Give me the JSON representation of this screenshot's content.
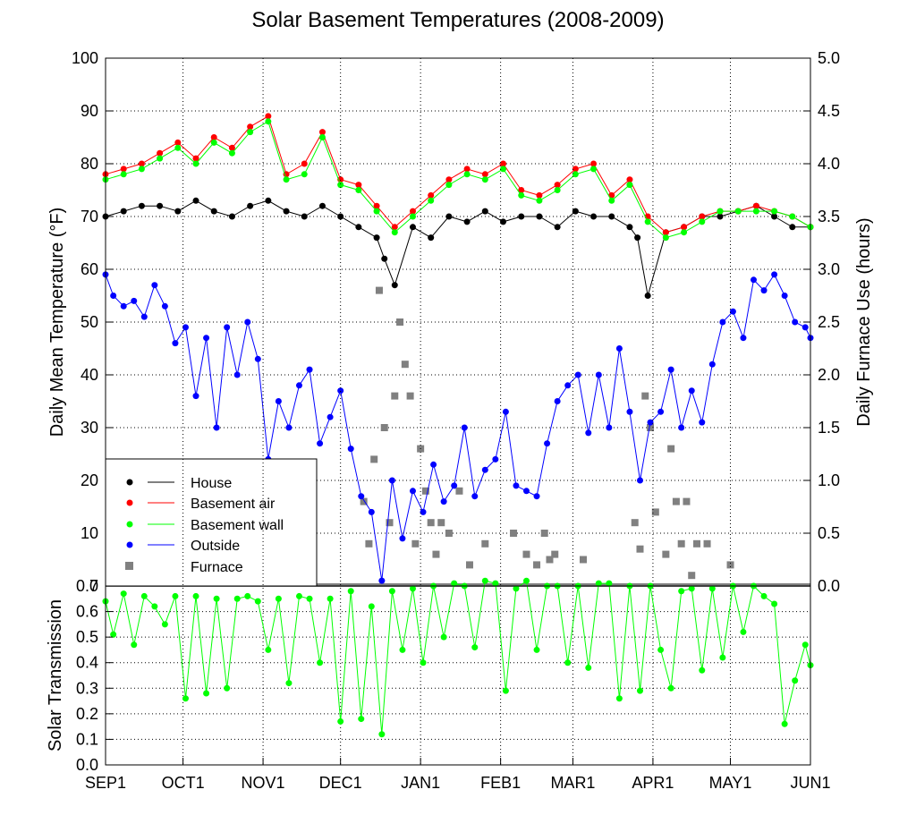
{
  "chart_data": [
    {
      "type": "line",
      "title": "Solar Basement Temperatures (2008-2009)",
      "xlabel": "",
      "ylabel": "Daily Mean Temperature (°F)",
      "ylabel_right": "Daily Furnace Use (hours)",
      "xlim": [
        "2008-09-01",
        "2009-06-01"
      ],
      "ylim": [
        0,
        100
      ],
      "ylim_right": [
        0,
        5
      ],
      "yticks": [
        "0",
        "10",
        "20",
        "30",
        "40",
        "50",
        "60",
        "70",
        "80",
        "90",
        "100"
      ],
      "yticks_right": [
        "0.0",
        "0.5",
        "1.0",
        "1.5",
        "2.0",
        "2.5",
        "3.0",
        "3.5",
        "4.0",
        "4.5",
        "5.0"
      ],
      "grid": true,
      "legend_position": "bottom-left",
      "colors": {
        "house": "#000000",
        "basement_air": "#ff0000",
        "basement_wall": "#00ff00",
        "outside": "#0000ff",
        "furnace": "#808080"
      },
      "series": [
        {
          "key": "house",
          "name": "House",
          "axis": "left",
          "style": "line+points",
          "x": [
            "2008-09-01",
            "2008-09-08",
            "2008-09-15",
            "2008-09-22",
            "2008-09-29",
            "2008-10-06",
            "2008-10-13",
            "2008-10-20",
            "2008-10-27",
            "2008-11-03",
            "2008-11-10",
            "2008-11-17",
            "2008-11-24",
            "2008-12-01",
            "2008-12-08",
            "2008-12-15",
            "2008-12-18",
            "2008-12-22",
            "2008-12-29",
            "2009-01-05",
            "2009-01-12",
            "2009-01-19",
            "2009-01-26",
            "2009-02-02",
            "2009-02-09",
            "2009-02-16",
            "2009-02-23",
            "2009-03-02",
            "2009-03-09",
            "2009-03-16",
            "2009-03-23",
            "2009-03-26",
            "2009-03-30",
            "2009-04-06",
            "2009-04-13",
            "2009-04-20",
            "2009-04-27",
            "2009-05-04",
            "2009-05-11",
            "2009-05-18",
            "2009-05-25",
            "2009-06-01"
          ],
          "y": [
            70,
            71,
            72,
            72,
            71,
            73,
            71,
            70,
            72,
            73,
            71,
            70,
            72,
            70,
            68,
            66,
            62,
            57,
            68,
            66,
            70,
            69,
            71,
            69,
            70,
            70,
            68,
            71,
            70,
            70,
            68,
            66,
            55,
            67,
            68,
            70,
            70,
            71,
            72,
            70,
            68,
            68
          ]
        },
        {
          "key": "basement_air",
          "name": "Basement air",
          "axis": "left",
          "style": "line+points",
          "x": [
            "2008-09-01",
            "2008-09-08",
            "2008-09-15",
            "2008-09-22",
            "2008-09-29",
            "2008-10-06",
            "2008-10-13",
            "2008-10-20",
            "2008-10-27",
            "2008-11-03",
            "2008-11-10",
            "2008-11-17",
            "2008-11-24",
            "2008-12-01",
            "2008-12-08",
            "2008-12-15",
            "2008-12-22",
            "2008-12-29",
            "2009-01-05",
            "2009-01-12",
            "2009-01-19",
            "2009-01-26",
            "2009-02-02",
            "2009-02-09",
            "2009-02-16",
            "2009-02-23",
            "2009-03-02",
            "2009-03-09",
            "2009-03-16",
            "2009-03-23",
            "2009-03-30",
            "2009-04-06",
            "2009-04-13",
            "2009-04-20",
            "2009-04-27",
            "2009-05-04",
            "2009-05-11",
            "2009-05-18",
            "2009-05-25",
            "2009-06-01"
          ],
          "y": [
            78,
            79,
            80,
            82,
            84,
            81,
            85,
            83,
            87,
            89,
            78,
            80,
            86,
            77,
            76,
            72,
            68,
            71,
            74,
            77,
            79,
            78,
            80,
            75,
            74,
            76,
            79,
            80,
            74,
            77,
            70,
            67,
            68,
            70,
            71,
            71,
            72,
            71,
            70,
            68
          ]
        },
        {
          "key": "basement_wall",
          "name": "Basement wall",
          "axis": "left",
          "style": "line+points",
          "x": [
            "2008-09-01",
            "2008-09-08",
            "2008-09-15",
            "2008-09-22",
            "2008-09-29",
            "2008-10-06",
            "2008-10-13",
            "2008-10-20",
            "2008-10-27",
            "2008-11-03",
            "2008-11-10",
            "2008-11-17",
            "2008-11-24",
            "2008-12-01",
            "2008-12-08",
            "2008-12-15",
            "2008-12-22",
            "2008-12-29",
            "2009-01-05",
            "2009-01-12",
            "2009-01-19",
            "2009-01-26",
            "2009-02-02",
            "2009-02-09",
            "2009-02-16",
            "2009-02-23",
            "2009-03-02",
            "2009-03-09",
            "2009-03-16",
            "2009-03-23",
            "2009-03-30",
            "2009-04-06",
            "2009-04-13",
            "2009-04-20",
            "2009-04-27",
            "2009-05-04",
            "2009-05-11",
            "2009-05-18",
            "2009-05-25",
            "2009-06-01"
          ],
          "y": [
            77,
            78,
            79,
            81,
            83,
            80,
            84,
            82,
            86,
            88,
            77,
            78,
            85,
            76,
            75,
            71,
            67,
            70,
            73,
            76,
            78,
            77,
            79,
            74,
            73,
            75,
            78,
            79,
            73,
            76,
            69,
            66,
            67,
            69,
            71,
            71,
            71,
            71,
            70,
            68
          ]
        },
        {
          "key": "outside",
          "name": "Outside",
          "axis": "left",
          "style": "line+points",
          "x": [
            "2008-09-01",
            "2008-09-04",
            "2008-09-08",
            "2008-09-12",
            "2008-09-16",
            "2008-09-20",
            "2008-09-24",
            "2008-09-28",
            "2008-10-02",
            "2008-10-06",
            "2008-10-10",
            "2008-10-14",
            "2008-10-18",
            "2008-10-22",
            "2008-10-26",
            "2008-10-30",
            "2008-11-03",
            "2008-11-07",
            "2008-11-11",
            "2008-11-15",
            "2008-11-19",
            "2008-11-23",
            "2008-11-27",
            "2008-12-01",
            "2008-12-05",
            "2008-12-09",
            "2008-12-13",
            "2008-12-17",
            "2008-12-21",
            "2008-12-25",
            "2008-12-29",
            "2009-01-02",
            "2009-01-06",
            "2009-01-10",
            "2009-01-14",
            "2009-01-18",
            "2009-01-22",
            "2009-01-26",
            "2009-01-30",
            "2009-02-03",
            "2009-02-07",
            "2009-02-11",
            "2009-02-15",
            "2009-02-19",
            "2009-02-23",
            "2009-02-27",
            "2009-03-03",
            "2009-03-07",
            "2009-03-11",
            "2009-03-15",
            "2009-03-19",
            "2009-03-23",
            "2009-03-27",
            "2009-03-31",
            "2009-04-04",
            "2009-04-08",
            "2009-04-12",
            "2009-04-16",
            "2009-04-20",
            "2009-04-24",
            "2009-04-28",
            "2009-05-02",
            "2009-05-06",
            "2009-05-10",
            "2009-05-14",
            "2009-05-18",
            "2009-05-22",
            "2009-05-26",
            "2009-05-30",
            "2009-06-01"
          ],
          "y": [
            59,
            55,
            53,
            54,
            51,
            57,
            53,
            46,
            49,
            36,
            47,
            30,
            49,
            40,
            50,
            43,
            24,
            35,
            30,
            38,
            41,
            27,
            32,
            37,
            26,
            17,
            14,
            1,
            20,
            9,
            18,
            14,
            23,
            16,
            19,
            30,
            17,
            22,
            24,
            33,
            19,
            18,
            17,
            27,
            35,
            38,
            40,
            29,
            40,
            30,
            45,
            33,
            20,
            31,
            33,
            41,
            30,
            37,
            31,
            42,
            50,
            52,
            47,
            58,
            56,
            59,
            55,
            50,
            49,
            47
          ]
        },
        {
          "key": "furnace",
          "name": "Furnace",
          "axis": "right",
          "style": "points",
          "x": [
            "2008-12-10",
            "2008-12-12",
            "2008-12-14",
            "2008-12-16",
            "2008-12-18",
            "2008-12-20",
            "2008-12-22",
            "2008-12-24",
            "2008-12-26",
            "2008-12-28",
            "2008-12-30",
            "2009-01-01",
            "2009-01-03",
            "2009-01-05",
            "2009-01-07",
            "2009-01-09",
            "2009-01-12",
            "2009-01-16",
            "2009-01-20",
            "2009-01-26",
            "2009-02-06",
            "2009-02-11",
            "2009-02-15",
            "2009-02-18",
            "2009-02-20",
            "2009-02-22",
            "2009-03-05",
            "2009-03-25",
            "2009-03-27",
            "2009-03-29",
            "2009-03-31",
            "2009-04-02",
            "2009-04-06",
            "2009-04-08",
            "2009-04-10",
            "2009-04-12",
            "2009-04-14",
            "2009-04-16",
            "2009-04-18",
            "2009-04-22",
            "2009-05-01"
          ],
          "y": [
            0.8,
            0.4,
            1.2,
            2.8,
            1.5,
            0.6,
            1.8,
            2.5,
            2.1,
            1.8,
            0.4,
            1.3,
            0.9,
            0.6,
            0.3,
            0.6,
            0.5,
            0.9,
            0.2,
            0.4,
            0.5,
            0.3,
            0.2,
            0.5,
            0.25,
            0.3,
            0.25,
            0.6,
            0.35,
            1.8,
            1.5,
            0.7,
            0.3,
            1.3,
            0.8,
            0.4,
            0.8,
            0.1,
            0.4,
            0.4,
            0.2
          ]
        }
      ]
    },
    {
      "type": "line",
      "title": "",
      "xlabel": "",
      "ylabel": "Solar Transmission",
      "ylim": [
        0,
        0.7
      ],
      "yticks": [
        "0.0",
        "0.1",
        "0.2",
        "0.3",
        "0.4",
        "0.5",
        "0.6",
        "0.7"
      ],
      "xticks": [
        {
          "date": "2008-09-01",
          "label": "SEP1"
        },
        {
          "date": "2008-10-01",
          "label": "OCT1"
        },
        {
          "date": "2008-11-01",
          "label": "NOV1"
        },
        {
          "date": "2008-12-01",
          "label": "DEC1"
        },
        {
          "date": "2009-01-01",
          "label": "JAN1"
        },
        {
          "date": "2009-02-01",
          "label": "FEB1"
        },
        {
          "date": "2009-03-01",
          "label": "MAR1"
        },
        {
          "date": "2009-04-01",
          "label": "APR1"
        },
        {
          "date": "2009-05-01",
          "label": "MAY1"
        },
        {
          "date": "2009-06-01",
          "label": "JUN1"
        }
      ],
      "grid": true,
      "series": [
        {
          "key": "solar",
          "name": "",
          "color": "#00ff00",
          "style": "line+points",
          "x": [
            "2008-09-01",
            "2008-09-04",
            "2008-09-08",
            "2008-09-12",
            "2008-09-16",
            "2008-09-20",
            "2008-09-24",
            "2008-09-28",
            "2008-10-02",
            "2008-10-06",
            "2008-10-10",
            "2008-10-14",
            "2008-10-18",
            "2008-10-22",
            "2008-10-26",
            "2008-10-30",
            "2008-11-03",
            "2008-11-07",
            "2008-11-11",
            "2008-11-15",
            "2008-11-19",
            "2008-11-23",
            "2008-11-27",
            "2008-12-01",
            "2008-12-05",
            "2008-12-09",
            "2008-12-13",
            "2008-12-17",
            "2008-12-21",
            "2008-12-25",
            "2008-12-29",
            "2009-01-02",
            "2009-01-06",
            "2009-01-10",
            "2009-01-14",
            "2009-01-18",
            "2009-01-22",
            "2009-01-26",
            "2009-01-30",
            "2009-02-03",
            "2009-02-07",
            "2009-02-11",
            "2009-02-15",
            "2009-02-19",
            "2009-02-23",
            "2009-02-27",
            "2009-03-03",
            "2009-03-07",
            "2009-03-11",
            "2009-03-15",
            "2009-03-19",
            "2009-03-23",
            "2009-03-27",
            "2009-03-31",
            "2009-04-04",
            "2009-04-08",
            "2009-04-12",
            "2009-04-16",
            "2009-04-20",
            "2009-04-24",
            "2009-04-28",
            "2009-05-02",
            "2009-05-06",
            "2009-05-10",
            "2009-05-14",
            "2009-05-18",
            "2009-05-22",
            "2009-05-26",
            "2009-05-30",
            "2009-06-01"
          ],
          "y": [
            0.64,
            0.51,
            0.67,
            0.47,
            0.66,
            0.62,
            0.55,
            0.66,
            0.26,
            0.66,
            0.28,
            0.65,
            0.3,
            0.65,
            0.66,
            0.64,
            0.45,
            0.65,
            0.32,
            0.66,
            0.65,
            0.4,
            0.65,
            0.17,
            0.68,
            0.18,
            0.62,
            0.12,
            0.68,
            0.45,
            0.69,
            0.4,
            0.7,
            0.5,
            0.71,
            0.7,
            0.46,
            0.72,
            0.71,
            0.29,
            0.69,
            0.72,
            0.45,
            0.7,
            0.7,
            0.4,
            0.7,
            0.38,
            0.71,
            0.71,
            0.26,
            0.7,
            0.29,
            0.7,
            0.45,
            0.3,
            0.68,
            0.69,
            0.37,
            0.69,
            0.42,
            0.7,
            0.52,
            0.7,
            0.66,
            0.63,
            0.16,
            0.33,
            0.47,
            0.39
          ]
        }
      ]
    }
  ]
}
